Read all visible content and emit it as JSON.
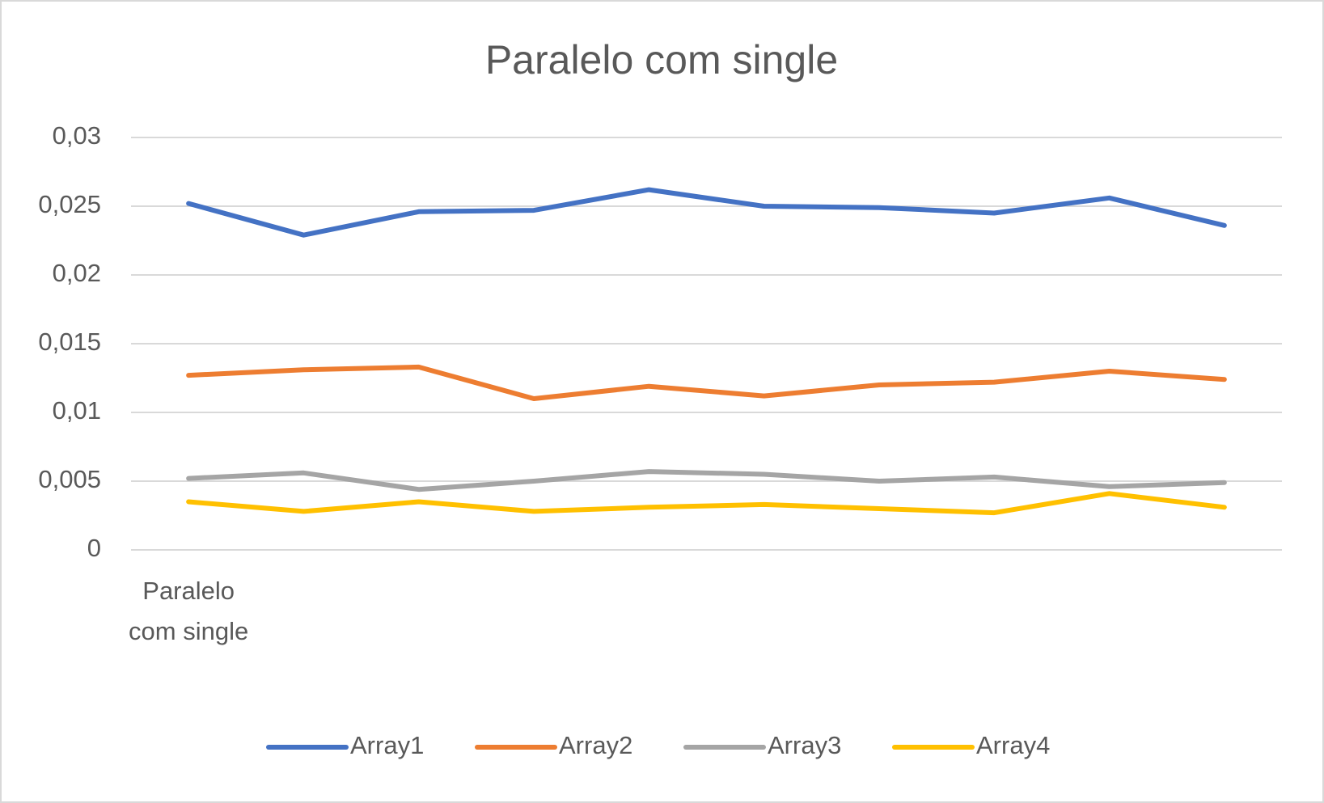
{
  "chart_data": {
    "type": "line",
    "title": "Paralelo com single",
    "categories": [
      "Paralelo com single",
      null,
      null,
      null,
      null,
      null,
      null,
      null,
      null,
      null
    ],
    "series": [
      {
        "name": "Array1",
        "color": "#4472c4",
        "values": [
          0.0252,
          0.0229,
          0.0246,
          0.0247,
          0.0262,
          0.025,
          0.0249,
          0.0245,
          0.0256,
          0.0236
        ]
      },
      {
        "name": "Array2",
        "color": "#ed7d31",
        "values": [
          0.0127,
          0.0131,
          0.0133,
          0.011,
          0.0119,
          0.0112,
          0.012,
          0.0122,
          0.013,
          0.0124
        ]
      },
      {
        "name": "Array3",
        "color": "#a5a5a5",
        "values": [
          0.0052,
          0.0056,
          0.0044,
          0.005,
          0.0057,
          0.0055,
          0.005,
          0.0053,
          0.0046,
          0.0049
        ]
      },
      {
        "name": "Array4",
        "color": "#ffc000",
        "values": [
          0.0035,
          0.0028,
          0.0035,
          0.0028,
          0.0031,
          0.0033,
          0.003,
          0.0027,
          0.0041,
          0.0031
        ]
      }
    ],
    "ylim": [
      0,
      0.03
    ],
    "yticks": [
      0,
      {
        "value": 0.005,
        "label": "0,005"
      },
      {
        "value": 0.01,
        "label": "0,01"
      },
      {
        "value": 0.015,
        "label": "0,015"
      },
      {
        "value": 0.02,
        "label": "0,02"
      },
      {
        "value": 0.025,
        "label": "0,025"
      },
      {
        "value": 0.03,
        "label": "0,03"
      }
    ],
    "grid": true,
    "legend": "bottom"
  }
}
